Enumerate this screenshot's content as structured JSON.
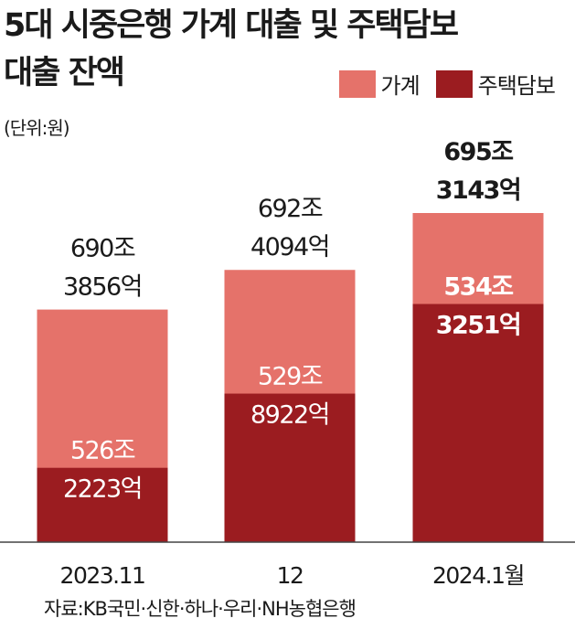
{
  "title": "5대 시중은행 가계 대출 및 주택담보\n대출 잔액",
  "unit": "(단위:원)",
  "source": "자료:KB국민·신한·하나·우리·NH농협은행",
  "colors": {
    "household": "#e5726a",
    "mortgage": "#9b1c20"
  },
  "chart_data": {
    "type": "bar",
    "stacked": true,
    "categories": [
      "2023.11",
      "12",
      "2024.1월"
    ],
    "series": [
      {
        "name": "가계",
        "values": [
          690.3856,
          692.4094,
          695.3143
        ],
        "labels": [
          "690조\n3856억",
          "692조\n4094억",
          "695조\n3143억"
        ]
      },
      {
        "name": "주택담보",
        "values": [
          526.2223,
          529.8922,
          534.3251
        ],
        "labels": [
          "526조\n2223억",
          "529조\n8922억",
          "534조\n3251억"
        ]
      }
    ],
    "highlight_index": 2
  }
}
